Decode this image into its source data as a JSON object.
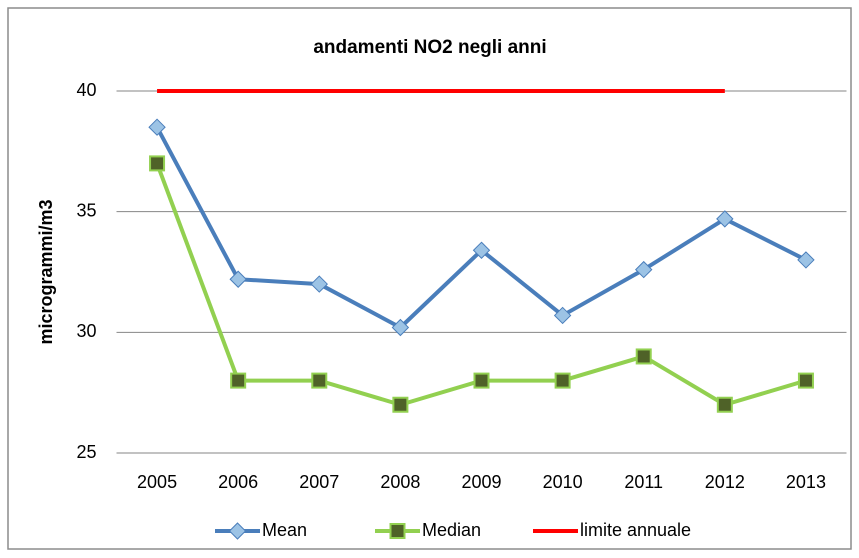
{
  "chart_data": {
    "type": "line",
    "title": "andamenti NO2 negli anni",
    "y_label": "microgrammi/m3",
    "categories": [
      "2005",
      "2006",
      "2007",
      "2008",
      "2009",
      "2010",
      "2011",
      "2012",
      "2013"
    ],
    "series": [
      {
        "name": "Mean",
        "color": "#4a7ebb",
        "marker": "diamond",
        "marker_color": "#9cc3e5",
        "values": [
          38.5,
          32.2,
          32.0,
          30.2,
          33.4,
          30.7,
          32.6,
          34.7,
          33.0
        ]
      },
      {
        "name": "Median",
        "color": "#92d050",
        "marker": "square",
        "marker_color": "#4f6228",
        "values": [
          37,
          28,
          28,
          27,
          28,
          28,
          29,
          27,
          28
        ]
      },
      {
        "name": "limite annuale",
        "color": "#ff0000",
        "marker": "none",
        "values": [
          40,
          40,
          40,
          40,
          40,
          40,
          40,
          40,
          null
        ]
      }
    ],
    "ylim": [
      25,
      40
    ],
    "yticks": [
      25,
      30,
      35,
      40
    ],
    "grid": true,
    "legend": "bottom"
  }
}
